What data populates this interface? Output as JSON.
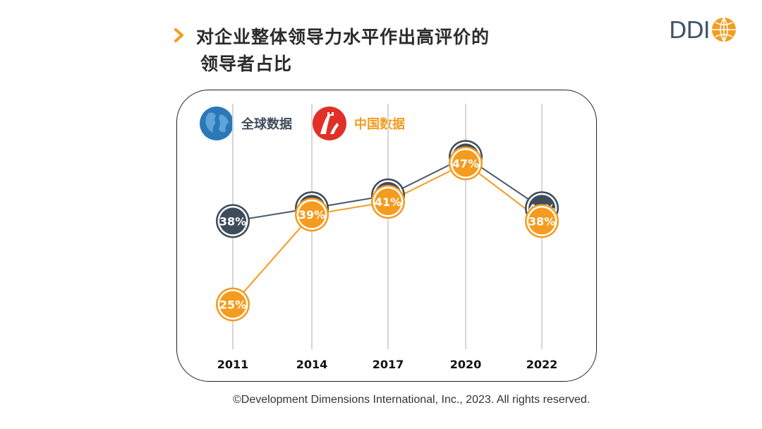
{
  "title": {
    "line1": "对企业整体领导力水平作出高评价的",
    "line2": "领导者占比"
  },
  "brand": {
    "name": "DDI"
  },
  "legend": [
    {
      "label": "全球数据",
      "color": "#3e4b5b",
      "text_color": "#3e4b5b",
      "icon": "globe-icon"
    },
    {
      "label": "中国数据",
      "color": "#f39c1f",
      "text_color": "#f39c1f",
      "icon": "great-wall-icon"
    }
  ],
  "chart_data": {
    "type": "line",
    "categories": [
      "2011",
      "2014",
      "2017",
      "2020",
      "2022"
    ],
    "series": [
      {
        "name": "全球数据",
        "values": [
          38,
          40,
          42,
          48,
          40
        ],
        "labels": [
          "38%",
          "40%",
          "42%",
          "48%",
          "40%"
        ],
        "color": "#4a5a6a"
      },
      {
        "name": "中国数据",
        "values": [
          25,
          39,
          41,
          47,
          38
        ],
        "labels": [
          "25%",
          "39%",
          "41%",
          "47%",
          "38%"
        ],
        "color": "#f39c1f"
      }
    ],
    "grid": "vertical"
  },
  "footer": {
    "copyright": "©Development Dimensions International, Inc., 2023. All rights reserved."
  }
}
